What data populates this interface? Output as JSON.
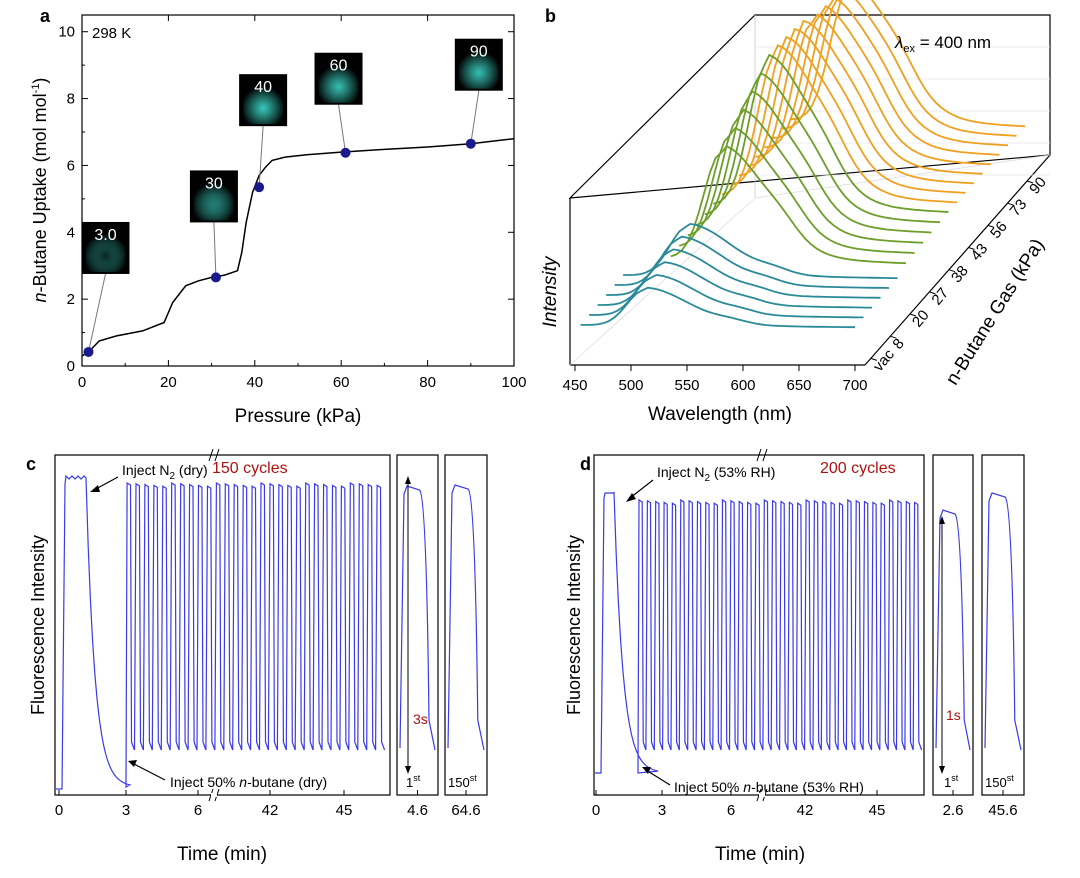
{
  "panels": {
    "a": {
      "letter": "a"
    },
    "b": {
      "letter": "b"
    },
    "c": {
      "letter": "c"
    },
    "d": {
      "letter": "d"
    }
  },
  "chart_data": [
    {
      "id": "a",
      "type": "line",
      "annotation": "298 K",
      "xlabel": "Pressure (kPa)",
      "ylabel_prefix": "n",
      "ylabel_rest": "-Butane Uptake (mol mol",
      "ylabel_sup": "-1",
      "ylabel_close": ")",
      "xlim": [
        0,
        100
      ],
      "ylim": [
        0,
        10.5
      ],
      "xticks": [
        0,
        20,
        40,
        60,
        80,
        100
      ],
      "yticks": [
        0,
        2,
        4,
        6,
        8,
        10
      ],
      "curve": {
        "x": [
          0,
          1.5,
          4,
          8,
          14,
          19,
          21,
          24,
          27,
          30,
          33,
          36,
          37,
          38,
          39.5,
          41,
          42.5,
          44,
          47,
          52,
          60,
          70,
          80,
          90,
          100
        ],
        "y": [
          0.3,
          0.42,
          0.75,
          0.9,
          1.05,
          1.3,
          1.9,
          2.4,
          2.55,
          2.65,
          2.72,
          2.85,
          3.4,
          4.3,
          5.2,
          5.7,
          5.95,
          6.15,
          6.25,
          6.32,
          6.4,
          6.48,
          6.55,
          6.65,
          6.8
        ]
      },
      "markers": [
        {
          "x": 1.5,
          "y": 0.42,
          "label": "3.0"
        },
        {
          "x": 31,
          "y": 2.65,
          "label": "30"
        },
        {
          "x": 41,
          "y": 5.35,
          "label": "40"
        },
        {
          "x": 61,
          "y": 6.38,
          "label": "60"
        },
        {
          "x": 90,
          "y": 6.65,
          "label": "90"
        }
      ],
      "colors": {
        "marker": "#1a1a8c",
        "line": "#000000",
        "glow": "#40e0d0"
      }
    },
    {
      "id": "b",
      "type": "line",
      "subtype": "waterfall-3d",
      "title_lambda": "λ",
      "title_sub": "ex",
      "title_rest": " = 400 nm",
      "xlabel": "Wavelength (nm)",
      "ylabel": "Intensity",
      "zlabel": "n-Butane Gas (kPa)",
      "xticks": [
        450,
        500,
        550,
        600,
        650,
        700
      ],
      "zticks": [
        "vac",
        "8",
        "20",
        "27",
        "38",
        "43",
        "56",
        "73",
        "90"
      ],
      "series_count": 21,
      "series_colors": {
        "low": "#2b8a99",
        "mid": "#6e9e2a",
        "high": "#f0a020"
      }
    },
    {
      "id": "c",
      "type": "line",
      "subtype": "cycling",
      "ylabel": "Fluorescence Intensity",
      "xlabel": "Time (min)",
      "cycles_label": "150 cycles",
      "ann_top_pre": "Inject N",
      "ann_top_sub": "2",
      "ann_top_post": " (dry)",
      "ann_bot_pre": "Inject 50% ",
      "ann_bot_italic": "n",
      "ann_bot_post": "-butane (dry)",
      "xticks": [
        "0",
        "3",
        "6",
        "42",
        "45"
      ],
      "inset1_ticks": [
        "4.6"
      ],
      "inset2_ticks": [
        "64.6"
      ],
      "inset1_label": "1",
      "inset1_sup": "st",
      "inset2_label": "150",
      "inset2_sup": "st",
      "response_time": "3s",
      "cycles_visible": 29,
      "line_color": "#3a3ae8"
    },
    {
      "id": "d",
      "type": "line",
      "subtype": "cycling",
      "ylabel": "Fluorescence Intensity",
      "xlabel": "Time (min)",
      "cycles_label": "200 cycles",
      "ann_top_pre": "Inject N",
      "ann_top_sub": "2",
      "ann_top_post": " (53% RH)",
      "ann_bot_pre": "Inject 50% ",
      "ann_bot_italic": "n",
      "ann_bot_post": "-butane (53% RH)",
      "xticks": [
        "0",
        "3",
        "6",
        "42",
        "45"
      ],
      "inset1_ticks": [
        "2.6"
      ],
      "inset2_ticks": [
        "45.6"
      ],
      "inset1_label": "1",
      "inset1_sup": "st",
      "inset2_label": "150",
      "inset2_sup": "st",
      "response_time": "1s",
      "cycles_visible": 34,
      "line_color": "#3a3ae8"
    }
  ]
}
